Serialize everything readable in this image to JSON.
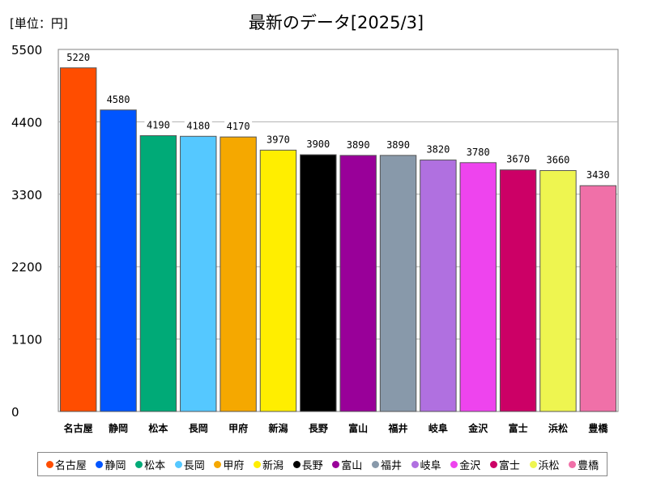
{
  "header": {
    "unit": "[単位：円]",
    "title": "最新のデータ[2025/3]"
  },
  "chart_data": {
    "type": "bar",
    "categories": [
      "名古屋",
      "静岡",
      "松本",
      "長岡",
      "甲府",
      "新潟",
      "長野",
      "富山",
      "福井",
      "岐阜",
      "金沢",
      "富士",
      "浜松",
      "豊橋"
    ],
    "values": [
      5220,
      4580,
      4190,
      4180,
      4170,
      3970,
      3900,
      3890,
      3890,
      3820,
      3780,
      3670,
      3660,
      3430
    ],
    "colors": [
      "#ff4d00",
      "#0055ff",
      "#00aa77",
      "#55c8ff",
      "#f5a800",
      "#ffee00",
      "#000000",
      "#990099",
      "#8899aa",
      "#b070e0",
      "#ee44ee",
      "#cc0066",
      "#eef550",
      "#f070a8"
    ],
    "yticks": [
      0,
      1100,
      2200,
      3300,
      4400,
      5500
    ],
    "ylim": [
      0,
      5500
    ],
    "grid": true,
    "legend_position": "bottom"
  }
}
